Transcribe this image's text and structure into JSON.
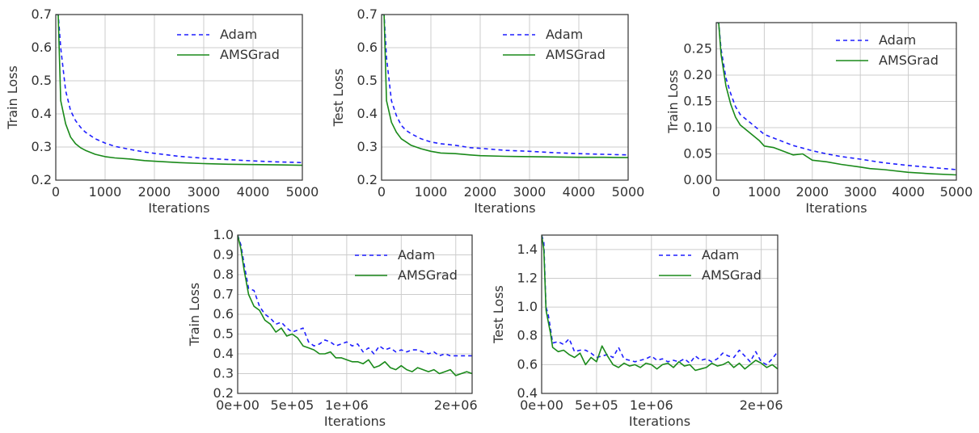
{
  "colors": {
    "Adam": "#1f1fff",
    "AMSGrad": "#1a8a1a",
    "grid": "#cccccc",
    "frame": "#333333"
  },
  "chart_data": [
    {
      "type": "line",
      "grid": true,
      "legend": "top-right",
      "xlabel": "Iterations",
      "ylabel": "Train Loss",
      "xlim": [
        0,
        5000
      ],
      "ylim": [
        0.2,
        0.7
      ],
      "xticks": [
        0,
        1000,
        2000,
        3000,
        4000,
        5000
      ],
      "xtick_labels": [
        "0",
        "1000",
        "2000",
        "3000",
        "4000",
        "5000"
      ],
      "yticks": [
        0.2,
        0.3,
        0.4,
        0.5,
        0.6,
        0.7
      ],
      "ytick_labels": [
        "0.2",
        "0.3",
        "0.4",
        "0.5",
        "0.6",
        "0.7"
      ],
      "x": [
        0,
        50,
        100,
        200,
        300,
        400,
        500,
        600,
        800,
        1000,
        1200,
        1500,
        1800,
        2000,
        2500,
        3000,
        3500,
        4000,
        4500,
        5000
      ],
      "series": [
        {
          "name": "Adam",
          "style": "dashed",
          "values": [
            0.7,
            0.7,
            0.6,
            0.47,
            0.41,
            0.38,
            0.36,
            0.345,
            0.325,
            0.312,
            0.302,
            0.293,
            0.285,
            0.281,
            0.272,
            0.266,
            0.262,
            0.258,
            0.255,
            0.253
          ]
        },
        {
          "name": "AMSGrad",
          "style": "solid",
          "values": [
            0.7,
            0.7,
            0.44,
            0.37,
            0.33,
            0.31,
            0.298,
            0.29,
            0.278,
            0.271,
            0.267,
            0.264,
            0.259,
            0.257,
            0.253,
            0.25,
            0.248,
            0.247,
            0.246,
            0.245
          ]
        }
      ]
    },
    {
      "type": "line",
      "grid": true,
      "legend": "top-right",
      "xlabel": "Iterations",
      "ylabel": "Test Loss",
      "xlim": [
        0,
        5000
      ],
      "ylim": [
        0.2,
        0.7
      ],
      "xticks": [
        0,
        1000,
        2000,
        3000,
        4000,
        5000
      ],
      "xtick_labels": [
        "0",
        "1000",
        "2000",
        "3000",
        "4000",
        "5000"
      ],
      "yticks": [
        0.2,
        0.3,
        0.4,
        0.5,
        0.6,
        0.7
      ],
      "ytick_labels": [
        "0.2",
        "0.3",
        "0.4",
        "0.5",
        "0.6",
        "0.7"
      ],
      "x": [
        0,
        50,
        100,
        200,
        300,
        400,
        500,
        600,
        800,
        1000,
        1200,
        1500,
        1800,
        2000,
        2500,
        3000,
        3500,
        4000,
        4500,
        5000
      ],
      "series": [
        {
          "name": "Adam",
          "style": "dashed",
          "values": [
            0.7,
            0.7,
            0.57,
            0.44,
            0.395,
            0.365,
            0.35,
            0.34,
            0.325,
            0.315,
            0.31,
            0.305,
            0.298,
            0.296,
            0.29,
            0.287,
            0.283,
            0.28,
            0.278,
            0.276
          ]
        },
        {
          "name": "AMSGrad",
          "style": "solid",
          "values": [
            0.7,
            0.7,
            0.44,
            0.375,
            0.345,
            0.325,
            0.315,
            0.305,
            0.295,
            0.287,
            0.282,
            0.28,
            0.276,
            0.274,
            0.272,
            0.271,
            0.27,
            0.269,
            0.269,
            0.268
          ]
        }
      ]
    },
    {
      "type": "line",
      "grid": true,
      "legend": "top-right",
      "xlabel": "Iterations",
      "ylabel": "Train Loss",
      "xlim": [
        0,
        5000
      ],
      "ylim": [
        0,
        0.3
      ],
      "xticks": [
        0,
        1000,
        2000,
        3000,
        4000,
        5000
      ],
      "xtick_labels": [
        "0",
        "1000",
        "2000",
        "3000",
        "4000",
        "5000"
      ],
      "yticks": [
        0,
        0.05,
        0.1,
        0.15,
        0.2,
        0.25
      ],
      "ytick_labels": [
        "0.00",
        "0.05",
        "0.10",
        "0.15",
        "0.20",
        "0.25"
      ],
      "x": [
        0,
        50,
        100,
        200,
        300,
        400,
        500,
        700,
        900,
        1000,
        1200,
        1400,
        1600,
        1800,
        2000,
        2300,
        2600,
        3000,
        3200,
        3500,
        4000,
        4500,
        5000
      ],
      "series": [
        {
          "name": "Adam",
          "style": "dashed",
          "values": [
            0.3,
            0.3,
            0.25,
            0.195,
            0.165,
            0.14,
            0.125,
            0.11,
            0.095,
            0.087,
            0.08,
            0.073,
            0.066,
            0.061,
            0.056,
            0.05,
            0.045,
            0.04,
            0.037,
            0.033,
            0.028,
            0.024,
            0.02
          ]
        },
        {
          "name": "AMSGrad",
          "style": "solid",
          "values": [
            0.3,
            0.3,
            0.24,
            0.18,
            0.145,
            0.12,
            0.105,
            0.09,
            0.075,
            0.065,
            0.062,
            0.055,
            0.048,
            0.05,
            0.038,
            0.035,
            0.03,
            0.025,
            0.022,
            0.02,
            0.015,
            0.012,
            0.01
          ]
        }
      ]
    },
    {
      "type": "line",
      "grid": true,
      "legend": "top-right",
      "xlabel": "Iterations",
      "ylabel": "Train Loss",
      "xlim": [
        0,
        2150000
      ],
      "ylim": [
        0.2,
        1.0
      ],
      "xticks": [
        0,
        500000,
        1000000,
        1500000,
        2000000
      ],
      "xtick_labels": [
        "0e+00",
        "5e+05",
        "1e+06",
        "",
        "2e+06"
      ],
      "yticks": [
        0.2,
        0.3,
        0.4,
        0.5,
        0.6,
        0.7,
        0.8,
        0.9,
        1.0
      ],
      "ytick_labels": [
        "0.2",
        "0.3",
        "0.4",
        "0.5",
        "0.6",
        "0.7",
        "0.8",
        "0.9",
        "1.0"
      ],
      "x": [
        0,
        30000,
        60000,
        100000,
        150000,
        200000,
        250000,
        300000,
        350000,
        400000,
        450000,
        500000,
        550000,
        600000,
        650000,
        700000,
        750000,
        800000,
        850000,
        900000,
        950000,
        1000000,
        1050000,
        1100000,
        1150000,
        1200000,
        1250000,
        1300000,
        1350000,
        1400000,
        1450000,
        1500000,
        1550000,
        1600000,
        1650000,
        1700000,
        1750000,
        1800000,
        1850000,
        1900000,
        1950000,
        2000000,
        2050000,
        2100000,
        2150000
      ],
      "series": [
        {
          "name": "Adam",
          "style": "dashed",
          "values": [
            1.0,
            0.95,
            0.85,
            0.73,
            0.72,
            0.64,
            0.6,
            0.58,
            0.55,
            0.56,
            0.53,
            0.51,
            0.52,
            0.53,
            0.46,
            0.44,
            0.45,
            0.47,
            0.46,
            0.44,
            0.45,
            0.46,
            0.44,
            0.45,
            0.41,
            0.43,
            0.4,
            0.44,
            0.42,
            0.43,
            0.41,
            0.42,
            0.41,
            0.42,
            0.42,
            0.41,
            0.4,
            0.41,
            0.39,
            0.4,
            0.39,
            0.39,
            0.39,
            0.39,
            0.39
          ]
        },
        {
          "name": "AMSGrad",
          "style": "solid",
          "values": [
            1.0,
            0.93,
            0.82,
            0.7,
            0.64,
            0.62,
            0.57,
            0.55,
            0.51,
            0.53,
            0.49,
            0.5,
            0.48,
            0.44,
            0.43,
            0.42,
            0.4,
            0.4,
            0.41,
            0.38,
            0.38,
            0.37,
            0.36,
            0.36,
            0.35,
            0.37,
            0.33,
            0.34,
            0.36,
            0.33,
            0.32,
            0.34,
            0.32,
            0.31,
            0.33,
            0.32,
            0.31,
            0.32,
            0.3,
            0.31,
            0.32,
            0.29,
            0.3,
            0.31,
            0.3
          ]
        }
      ]
    },
    {
      "type": "line",
      "grid": true,
      "legend": "top-right",
      "xlabel": "Iterations",
      "ylabel": "Test Loss",
      "xlim": [
        0,
        2150000
      ],
      "ylim": [
        0.4,
        1.5
      ],
      "xticks": [
        0,
        500000,
        1000000,
        1500000,
        2000000
      ],
      "xtick_labels": [
        "0e+00",
        "5e+05",
        "1e+06",
        "",
        "2e+06"
      ],
      "yticks": [
        0.4,
        0.6,
        0.8,
        1.0,
        1.2,
        1.4
      ],
      "ytick_labels": [
        "0.4",
        "0.6",
        "0.8",
        "1.0",
        "1.2",
        "1.4"
      ],
      "x": [
        0,
        20000,
        40000,
        60000,
        80000,
        100000,
        150000,
        200000,
        250000,
        300000,
        350000,
        400000,
        450000,
        500000,
        550000,
        600000,
        650000,
        700000,
        750000,
        800000,
        850000,
        900000,
        950000,
        1000000,
        1050000,
        1100000,
        1150000,
        1200000,
        1250000,
        1300000,
        1350000,
        1400000,
        1450000,
        1500000,
        1550000,
        1600000,
        1650000,
        1700000,
        1750000,
        1800000,
        1850000,
        1900000,
        1950000,
        2000000,
        2050000,
        2100000,
        2150000
      ],
      "series": [
        {
          "name": "Adam",
          "style": "dashed",
          "values": [
            1.5,
            1.45,
            1.0,
            0.95,
            0.85,
            0.75,
            0.76,
            0.74,
            0.78,
            0.69,
            0.7,
            0.7,
            0.68,
            0.65,
            0.66,
            0.67,
            0.65,
            0.72,
            0.64,
            0.63,
            0.62,
            0.63,
            0.64,
            0.66,
            0.63,
            0.64,
            0.62,
            0.63,
            0.62,
            0.64,
            0.61,
            0.66,
            0.63,
            0.64,
            0.62,
            0.64,
            0.68,
            0.66,
            0.65,
            0.7,
            0.66,
            0.62,
            0.69,
            0.62,
            0.6,
            0.64,
            0.69
          ]
        },
        {
          "name": "AMSGrad",
          "style": "solid",
          "values": [
            1.5,
            1.4,
            0.98,
            0.9,
            0.82,
            0.72,
            0.69,
            0.7,
            0.67,
            0.65,
            0.68,
            0.6,
            0.65,
            0.62,
            0.73,
            0.66,
            0.6,
            0.58,
            0.61,
            0.59,
            0.6,
            0.58,
            0.61,
            0.6,
            0.57,
            0.6,
            0.61,
            0.58,
            0.62,
            0.59,
            0.6,
            0.56,
            0.57,
            0.58,
            0.61,
            0.59,
            0.6,
            0.62,
            0.58,
            0.61,
            0.57,
            0.6,
            0.63,
            0.61,
            0.58,
            0.6,
            0.57
          ]
        }
      ]
    }
  ]
}
